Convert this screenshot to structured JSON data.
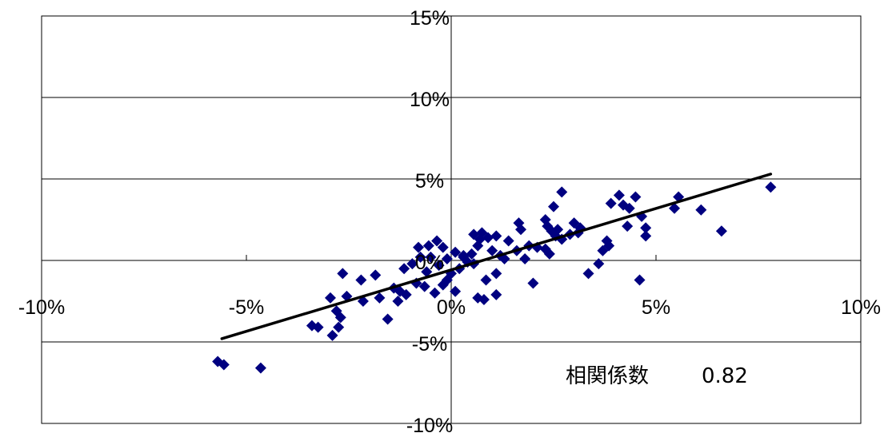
{
  "chart_data": {
    "type": "scatter",
    "title": "",
    "xlabel": "",
    "ylabel": "",
    "xlim": [
      -10,
      10
    ],
    "ylim": [
      -10,
      15
    ],
    "x_ticks": [
      {
        "value": -10,
        "label": "-10%"
      },
      {
        "value": -5,
        "label": "-5%"
      },
      {
        "value": 0,
        "label": "0%"
      },
      {
        "value": 5,
        "label": "5%"
      },
      {
        "value": 10,
        "label": "10%"
      }
    ],
    "y_ticks": [
      {
        "value": -10,
        "label": "-10%"
      },
      {
        "value": -5,
        "label": "-5%"
      },
      {
        "value": 0,
        "label": "0%"
      },
      {
        "value": 5,
        "label": "5%"
      },
      {
        "value": 10,
        "label": "10%"
      },
      {
        "value": 15,
        "label": "15%"
      }
    ],
    "grid": "horizontal",
    "marker": "diamond",
    "marker_color": "#000080",
    "trendline": {
      "x": [
        -5.6,
        7.8
      ],
      "y": [
        -4.8,
        5.3
      ],
      "color": "#000000"
    },
    "annotation": {
      "label": "相関係数",
      "value": "0.82"
    },
    "points": [
      [
        -5.7,
        -6.2
      ],
      [
        -5.55,
        -6.4
      ],
      [
        -4.65,
        -6.6
      ],
      [
        -3.4,
        -4.0
      ],
      [
        -3.25,
        -4.1
      ],
      [
        -2.9,
        -4.6
      ],
      [
        -2.75,
        -4.1
      ],
      [
        -2.8,
        -3.1
      ],
      [
        -2.7,
        -3.5
      ],
      [
        -2.95,
        -2.3
      ],
      [
        -2.55,
        -2.2
      ],
      [
        -2.15,
        -2.5
      ],
      [
        -2.65,
        -0.8
      ],
      [
        -2.2,
        -1.2
      ],
      [
        -1.85,
        -0.9
      ],
      [
        -1.75,
        -2.3
      ],
      [
        -1.3,
        -2.5
      ],
      [
        -1.4,
        -1.7
      ],
      [
        -1.55,
        -3.6
      ],
      [
        -1.25,
        -1.9
      ],
      [
        -1.1,
        -2.1
      ],
      [
        -1.15,
        -0.5
      ],
      [
        -0.85,
        -1.4
      ],
      [
        -0.65,
        -1.6
      ],
      [
        -0.4,
        -2.0
      ],
      [
        -0.2,
        -1.5
      ],
      [
        -0.95,
        -0.2
      ],
      [
        -0.75,
        0.2
      ],
      [
        -0.6,
        -0.7
      ],
      [
        -0.3,
        -0.3
      ],
      [
        -0.5,
        0.2
      ],
      [
        -0.1,
        0.1
      ],
      [
        -0.8,
        0.8
      ],
      [
        -0.55,
        0.9
      ],
      [
        -0.35,
        1.2
      ],
      [
        -0.2,
        0.8
      ],
      [
        0.1,
        0.5
      ],
      [
        0.3,
        0.3
      ],
      [
        -0.1,
        -1.2
      ],
      [
        0.0,
        -0.8
      ],
      [
        0.1,
        -1.9
      ],
      [
        0.2,
        -0.5
      ],
      [
        0.4,
        -0.1
      ],
      [
        0.55,
        -0.2
      ],
      [
        0.3,
        0.2
      ],
      [
        0.5,
        0.4
      ],
      [
        0.65,
        0.9
      ],
      [
        0.7,
        1.3
      ],
      [
        0.75,
        1.7
      ],
      [
        0.9,
        1.4
      ],
      [
        0.55,
        1.6
      ],
      [
        0.65,
        -2.3
      ],
      [
        0.8,
        -2.4
      ],
      [
        1.1,
        -2.1
      ],
      [
        0.85,
        -1.2
      ],
      [
        1.1,
        -0.8
      ],
      [
        1.3,
        0.1
      ],
      [
        1.0,
        0.6
      ],
      [
        1.2,
        0.3
      ],
      [
        1.4,
        1.2
      ],
      [
        1.6,
        0.6
      ],
      [
        1.1,
        1.5
      ],
      [
        1.8,
        0.1
      ],
      [
        2.0,
        -1.4
      ],
      [
        1.7,
        1.9
      ],
      [
        1.65,
        2.3
      ],
      [
        1.9,
        0.9
      ],
      [
        2.1,
        0.8
      ],
      [
        2.3,
        0.7
      ],
      [
        2.4,
        0.4
      ],
      [
        2.45,
        1.8
      ],
      [
        2.3,
        2.5
      ],
      [
        2.55,
        1.5
      ],
      [
        2.35,
        2.1
      ],
      [
        2.6,
        1.9
      ],
      [
        2.7,
        1.3
      ],
      [
        2.5,
        3.3
      ],
      [
        2.9,
        1.6
      ],
      [
        3.0,
        2.3
      ],
      [
        3.15,
        2.0
      ],
      [
        3.35,
        -0.8
      ],
      [
        2.7,
        4.2
      ],
      [
        3.1,
        1.7
      ],
      [
        3.6,
        -0.2
      ],
      [
        3.7,
        0.6
      ],
      [
        3.8,
        1.2
      ],
      [
        3.85,
        0.9
      ],
      [
        3.9,
        3.5
      ],
      [
        4.1,
        4.0
      ],
      [
        4.2,
        3.4
      ],
      [
        4.3,
        2.1
      ],
      [
        4.35,
        3.2
      ],
      [
        4.5,
        3.9
      ],
      [
        4.6,
        -1.2
      ],
      [
        4.65,
        2.7
      ],
      [
        4.75,
        1.5
      ],
      [
        4.75,
        2.0
      ],
      [
        5.45,
        3.2
      ],
      [
        5.55,
        3.9
      ],
      [
        6.1,
        3.1
      ],
      [
        6.6,
        1.8
      ],
      [
        7.8,
        4.5
      ]
    ]
  }
}
